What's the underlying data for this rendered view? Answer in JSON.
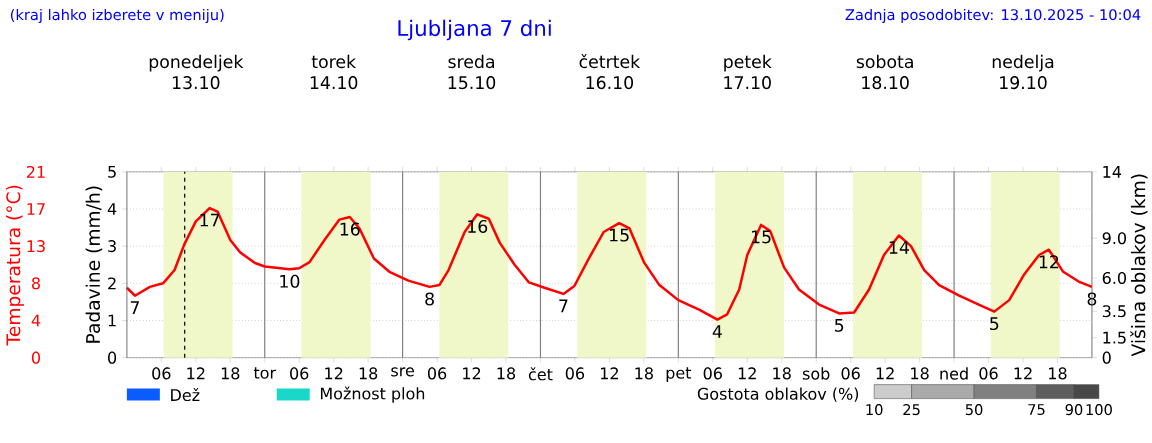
{
  "chart_data": {
    "type": "line",
    "title": "Ljubljana 7 dni",
    "ylabel": "Temperatura (°C)",
    "y2label": "Padavine (mm/h)",
    "y3label": "Višina oblakov (km)",
    "clabel": "Gostota oblakov (%)",
    "annotations": [
      "(kraj lahko izberete v meniju)",
      "Zadnja posodobitev: 13.10.2025 - 10:04",
      "Dež",
      "Možnost ploh",
      "ponedeljek",
      "13.10",
      "torek",
      "14.10",
      "sreda",
      "15.10",
      "četrtek",
      "16.10",
      "petek",
      "17.10",
      "sobota",
      "18.10",
      "nedelja",
      "19.10",
      {
        "text": "7",
        "x": "2025-10-13T01:24",
        "y": 7.0
      },
      {
        "text": "17",
        "x": "2025-10-13T14:24",
        "y": 16.9
      },
      {
        "text": "10",
        "x": "2025-10-14T04:18",
        "y": 10.0
      },
      {
        "text": "16",
        "x": "2025-10-14T14:48",
        "y": 15.9
      },
      {
        "text": "8",
        "x": "2025-10-15T04:42",
        "y": 8.0
      },
      {
        "text": "16",
        "x": "2025-10-15T13:00",
        "y": 16.2
      },
      {
        "text": "7",
        "x": "2025-10-16T04:00",
        "y": 7.2
      },
      {
        "text": "15",
        "x": "2025-10-16T13:42",
        "y": 15.2
      },
      {
        "text": "4",
        "x": "2025-10-17T06:48",
        "y": 4.3
      },
      {
        "text": "15",
        "x": "2025-10-17T14:24",
        "y": 15.0
      },
      {
        "text": "5",
        "x": "2025-10-18T04:00",
        "y": 5.0
      },
      {
        "text": "14",
        "x": "2025-10-18T14:24",
        "y": 13.8
      },
      {
        "text": "5",
        "x": "2025-10-19T07:00",
        "y": 5.2
      },
      {
        "text": "12",
        "x": "2025-10-19T16:30",
        "y": 12.2
      },
      {
        "text": "8",
        "x": "2025-10-20T00:00",
        "y": 8.0
      }
    ],
    "x": [
      "2025-10-13T00:00",
      "2025-10-13T01:24",
      "2025-10-13T04:00",
      "2025-10-13T06:18",
      "2025-10-13T08:18",
      "2025-10-13T10:00",
      "2025-10-13T12:00",
      "2025-10-13T14:24",
      "2025-10-13T15:48",
      "2025-10-13T18:00",
      "2025-10-13T19:42",
      "2025-10-13T22:18",
      "2025-10-14T00:00",
      "2025-10-14T04:18",
      "2025-10-14T06:00",
      "2025-10-14T07:48",
      "2025-10-14T10:24",
      "2025-10-14T13:00",
      "2025-10-14T14:48",
      "2025-10-14T16:30",
      "2025-10-14T19:00",
      "2025-10-14T21:42",
      "2025-10-15T01:00",
      "2025-10-15T04:42",
      "2025-10-15T06:24",
      "2025-10-15T08:00",
      "2025-10-15T10:48",
      "2025-10-15T13:00",
      "2025-10-15T15:00",
      "2025-10-15T16:54",
      "2025-10-15T19:30",
      "2025-10-15T22:00",
      "2025-10-16T00:42",
      "2025-10-16T04:00",
      "2025-10-16T05:54",
      "2025-10-16T08:30",
      "2025-10-16T11:00",
      "2025-10-16T13:42",
      "2025-10-16T15:30",
      "2025-10-16T18:00",
      "2025-10-16T20:42",
      "2025-10-17T00:00",
      "2025-10-17T03:42",
      "2025-10-17T06:48",
      "2025-10-17T08:30",
      "2025-10-17T10:36",
      "2025-10-17T12:00",
      "2025-10-17T14:24",
      "2025-10-17T16:00",
      "2025-10-17T18:24",
      "2025-10-17T21:00",
      "2025-10-18T00:30",
      "2025-10-18T04:00",
      "2025-10-18T06:36",
      "2025-10-18T09:12",
      "2025-10-18T11:48",
      "2025-10-18T14:24",
      "2025-10-18T16:30",
      "2025-10-18T18:48",
      "2025-10-18T21:24",
      "2025-10-19T00:54",
      "2025-10-19T04:18",
      "2025-10-19T07:00",
      "2025-10-19T09:36",
      "2025-10-19T12:12",
      "2025-10-19T14:48",
      "2025-10-19T16:30",
      "2025-10-19T19:00",
      "2025-10-19T21:42",
      "2025-10-20T00:00"
    ],
    "series": [
      {
        "color": "#ff0000",
        "values": [
          7.9,
          7.0,
          8.0,
          8.4,
          9.9,
          12.8,
          15.4,
          16.9,
          16.5,
          13.3,
          11.9,
          10.7,
          10.3,
          10.0,
          10.1,
          10.8,
          13.3,
          15.6,
          15.9,
          14.6,
          11.2,
          9.7,
          8.7,
          8.0,
          8.2,
          9.9,
          14.2,
          16.2,
          15.7,
          13.0,
          10.5,
          8.5,
          7.9,
          7.2,
          8.1,
          11.3,
          14.2,
          15.2,
          14.6,
          10.8,
          8.2,
          6.5,
          5.4,
          4.3,
          4.9,
          7.7,
          11.6,
          15.0,
          14.3,
          10.2,
          7.7,
          6.0,
          5.0,
          5.1,
          7.7,
          11.6,
          13.8,
          12.6,
          9.9,
          8.2,
          7.0,
          6.0,
          5.2,
          6.5,
          9.4,
          11.6,
          12.2,
          9.7,
          8.6,
          8.0
        ]
      }
    ],
    "xlim": [
      "2025-10-13T00:00",
      "2025-10-20T00:00"
    ],
    "xticks": [
      {
        "value": "2025-10-13T06:00",
        "label": "06"
      },
      {
        "value": "2025-10-13T12:00",
        "label": "12"
      },
      {
        "value": "2025-10-13T18:00",
        "label": "18"
      },
      {
        "value": "2025-10-14T00:00",
        "label": "tor"
      },
      {
        "value": "2025-10-14T06:00",
        "label": "06"
      },
      {
        "value": "2025-10-14T12:00",
        "label": "12"
      },
      {
        "value": "2025-10-14T18:00",
        "label": "18"
      },
      {
        "value": "2025-10-15T00:00",
        "label": "sre"
      },
      {
        "value": "2025-10-15T06:00",
        "label": "06"
      },
      {
        "value": "2025-10-15T12:00",
        "label": "12"
      },
      {
        "value": "2025-10-15T18:00",
        "label": "18"
      },
      {
        "value": "2025-10-16T00:00",
        "label": "čet"
      },
      {
        "value": "2025-10-16T06:00",
        "label": "06"
      },
      {
        "value": "2025-10-16T12:00",
        "label": "12"
      },
      {
        "value": "2025-10-16T18:00",
        "label": "18"
      },
      {
        "value": "2025-10-17T00:00",
        "label": "pet"
      },
      {
        "value": "2025-10-17T06:00",
        "label": "06"
      },
      {
        "value": "2025-10-17T12:00",
        "label": "12"
      },
      {
        "value": "2025-10-17T18:00",
        "label": "18"
      },
      {
        "value": "2025-10-18T00:00",
        "label": "sob"
      },
      {
        "value": "2025-10-18T06:00",
        "label": "06"
      },
      {
        "value": "2025-10-18T12:00",
        "label": "12"
      },
      {
        "value": "2025-10-18T18:00",
        "label": "18"
      },
      {
        "value": "2025-10-19T00:00",
        "label": "ned"
      },
      {
        "value": "2025-10-19T06:00",
        "label": "06"
      },
      {
        "value": "2025-10-19T12:00",
        "label": "12"
      },
      {
        "value": "2025-10-19T18:00",
        "label": "18"
      }
    ],
    "ylim": [
      0,
      21
    ],
    "yticks": [
      0,
      {
        "value": 4.2,
        "label": "4"
      },
      {
        "value": 8.4,
        "label": "8"
      },
      {
        "value": 12.6,
        "label": "13"
      },
      {
        "value": 16.8,
        "label": "17"
      },
      21
    ],
    "y2lim": [
      0,
      5
    ],
    "y2ticks": [
      0,
      1,
      2,
      3,
      4,
      5
    ],
    "y3lim": [
      0,
      14
    ],
    "y3ticks": [
      0,
      1.5,
      3.5,
      {
        "value": 6,
        "label": "6.0"
      },
      {
        "value": 9,
        "label": "9.0"
      },
      14
    ],
    "clim": [
      10,
      100
    ],
    "cticks": [
      10,
      25,
      50,
      75,
      90,
      100
    ],
    "bands": [
      {
        "axis": "x",
        "from": "2025-10-13T06:24",
        "to": "2025-10-13T18:24",
        "color": "#f0f7c8"
      },
      {
        "axis": "x",
        "from": "2025-10-14T06:24",
        "to": "2025-10-14T18:24",
        "color": "#f0f7c8"
      },
      {
        "axis": "x",
        "from": "2025-10-15T06:24",
        "to": "2025-10-15T18:24",
        "color": "#f0f7c8"
      },
      {
        "axis": "x",
        "from": "2025-10-16T06:24",
        "to": "2025-10-16T18:24",
        "color": "#f0f7c8"
      },
      {
        "axis": "x",
        "from": "2025-10-17T06:24",
        "to": "2025-10-17T18:24",
        "color": "#f0f7c8"
      },
      {
        "axis": "x",
        "from": "2025-10-18T06:24",
        "to": "2025-10-18T18:24",
        "color": "#f0f7c8"
      },
      {
        "axis": "x",
        "from": "2025-10-19T06:24",
        "to": "2025-10-19T18:24",
        "color": "#f0f7c8"
      }
    ],
    "ref_lines": [
      {
        "axis": "x",
        "value": "2025-10-14T00:00",
        "color": "#808080"
      },
      {
        "axis": "x",
        "value": "2025-10-15T00:00",
        "color": "#808080"
      },
      {
        "axis": "x",
        "value": "2025-10-16T00:00",
        "color": "#808080"
      },
      {
        "axis": "x",
        "value": "2025-10-17T00:00",
        "color": "#808080"
      },
      {
        "axis": "x",
        "value": "2025-10-18T00:00",
        "color": "#808080"
      },
      {
        "axis": "x",
        "value": "2025-10-19T00:00",
        "color": "#808080"
      },
      {
        "axis": "x",
        "value": "2025-10-13T10:04",
        "color": "#000000",
        "line_style": "dashed"
      }
    ],
    "grid": "y",
    "marker": "none",
    "line_style": "solid"
  }
}
